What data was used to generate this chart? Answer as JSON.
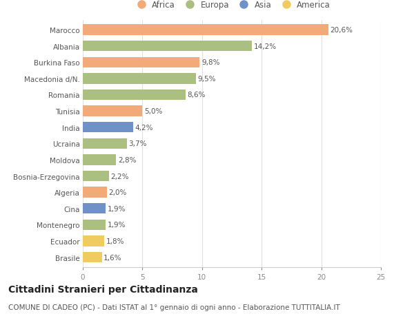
{
  "countries": [
    "Marocco",
    "Albania",
    "Burkina Faso",
    "Macedonia d/N.",
    "Romania",
    "Tunisia",
    "India",
    "Ucraina",
    "Moldova",
    "Bosnia-Erzegovina",
    "Algeria",
    "Cina",
    "Montenegro",
    "Ecuador",
    "Brasile"
  ],
  "values": [
    20.6,
    14.2,
    9.8,
    9.5,
    8.6,
    5.0,
    4.2,
    3.7,
    2.8,
    2.2,
    2.0,
    1.9,
    1.9,
    1.8,
    1.6
  ],
  "continents": [
    "Africa",
    "Europa",
    "Africa",
    "Europa",
    "Europa",
    "Africa",
    "Asia",
    "Europa",
    "Europa",
    "Europa",
    "Africa",
    "Asia",
    "Europa",
    "America",
    "America"
  ],
  "colors": {
    "Africa": "#F2AA78",
    "Europa": "#AABF80",
    "Asia": "#7090C8",
    "America": "#F0CC60"
  },
  "legend_order": [
    "Africa",
    "Europa",
    "Asia",
    "America"
  ],
  "xlim": [
    0,
    25
  ],
  "xticks": [
    0,
    5,
    10,
    15,
    20,
    25
  ],
  "title": "Cittadini Stranieri per Cittadinanza",
  "subtitle": "COMUNE DI CADEO (PC) - Dati ISTAT al 1° gennaio di ogni anno - Elaborazione TUTTITALIA.IT",
  "background_color": "#ffffff",
  "bar_height": 0.65,
  "title_fontsize": 10,
  "subtitle_fontsize": 7.5,
  "label_fontsize": 7.5,
  "tick_fontsize": 7.5,
  "legend_fontsize": 8.5
}
